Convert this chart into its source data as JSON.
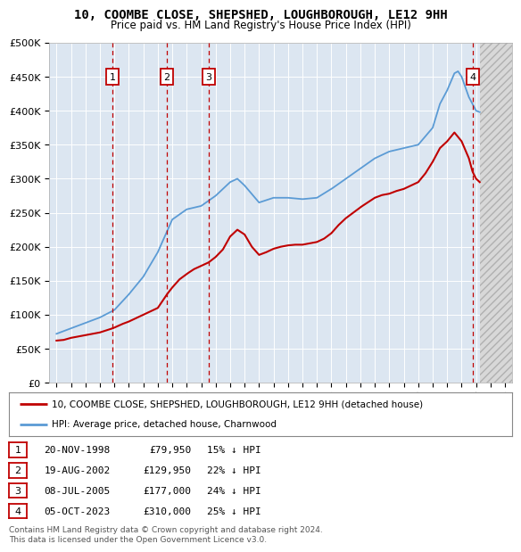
{
  "title": "10, COOMBE CLOSE, SHEPSHED, LOUGHBOROUGH, LE12 9HH",
  "subtitle": "Price paid vs. HM Land Registry's House Price Index (HPI)",
  "hpi_label": "HPI: Average price, detached house, Charnwood",
  "property_label": "10, COOMBE CLOSE, SHEPSHED, LOUGHBOROUGH, LE12 9HH (detached house)",
  "hpi_color": "#5b9bd5",
  "property_color": "#c00000",
  "plot_bg_color": "#dce6f1",
  "transactions": [
    {
      "num": 1,
      "date": "20-NOV-1998",
      "price": 79950,
      "year": 1998.88,
      "pct": "15% ↓ HPI"
    },
    {
      "num": 2,
      "date": "19-AUG-2002",
      "price": 129950,
      "year": 2002.63,
      "pct": "22% ↓ HPI"
    },
    {
      "num": 3,
      "date": "08-JUL-2005",
      "price": 177000,
      "year": 2005.52,
      "pct": "24% ↓ HPI"
    },
    {
      "num": 4,
      "date": "05-OCT-2023",
      "price": 310000,
      "year": 2023.76,
      "pct": "25% ↓ HPI"
    }
  ],
  "xlim": [
    1994.5,
    2026.5
  ],
  "ylim": [
    0,
    500000
  ],
  "yticks": [
    0,
    50000,
    100000,
    150000,
    200000,
    250000,
    300000,
    350000,
    400000,
    450000,
    500000
  ],
  "xticks": [
    1995,
    1996,
    1997,
    1998,
    1999,
    2000,
    2001,
    2002,
    2003,
    2004,
    2005,
    2006,
    2007,
    2008,
    2009,
    2010,
    2011,
    2012,
    2013,
    2014,
    2015,
    2016,
    2017,
    2018,
    2019,
    2020,
    2021,
    2022,
    2023,
    2024,
    2025,
    2026
  ],
  "footer": "Contains HM Land Registry data © Crown copyright and database right 2024.\nThis data is licensed under the Open Government Licence v3.0."
}
